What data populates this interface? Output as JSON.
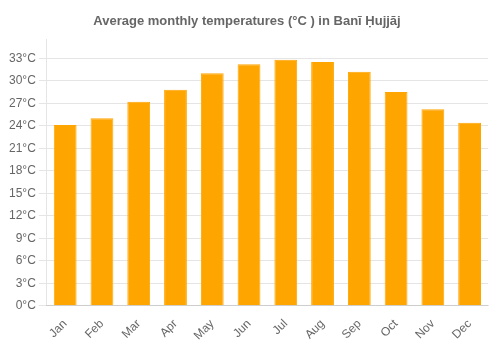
{
  "chart_data": {
    "type": "bar",
    "title": "Average monthly temperatures (°C ) in Banī Ḥujjāj",
    "categories": [
      "Jan",
      "Feb",
      "Mar",
      "Apr",
      "May",
      "Jun",
      "Jul",
      "Aug",
      "Sep",
      "Oct",
      "Nov",
      "Dec"
    ],
    "values": [
      24.1,
      25.0,
      27.2,
      28.8,
      31.0,
      32.2,
      32.8,
      32.5,
      31.2,
      28.5,
      26.2,
      24.4
    ],
    "color": "#FFA500",
    "ylim": [
      0,
      35.5
    ],
    "yticks": [
      {
        "value": 0,
        "label": "0°C"
      },
      {
        "value": 3,
        "label": "3°C"
      },
      {
        "value": 6,
        "label": "6°C"
      },
      {
        "value": 9,
        "label": "9°C"
      },
      {
        "value": 12,
        "label": "12°C"
      },
      {
        "value": 15,
        "label": "15°C"
      },
      {
        "value": 18,
        "label": "18°C"
      },
      {
        "value": 21,
        "label": "21°C"
      },
      {
        "value": 24,
        "label": "24°C"
      },
      {
        "value": 27,
        "label": "27°C"
      },
      {
        "value": 30,
        "label": "30°C"
      },
      {
        "value": 33,
        "label": "33°C"
      }
    ],
    "grid": true
  }
}
